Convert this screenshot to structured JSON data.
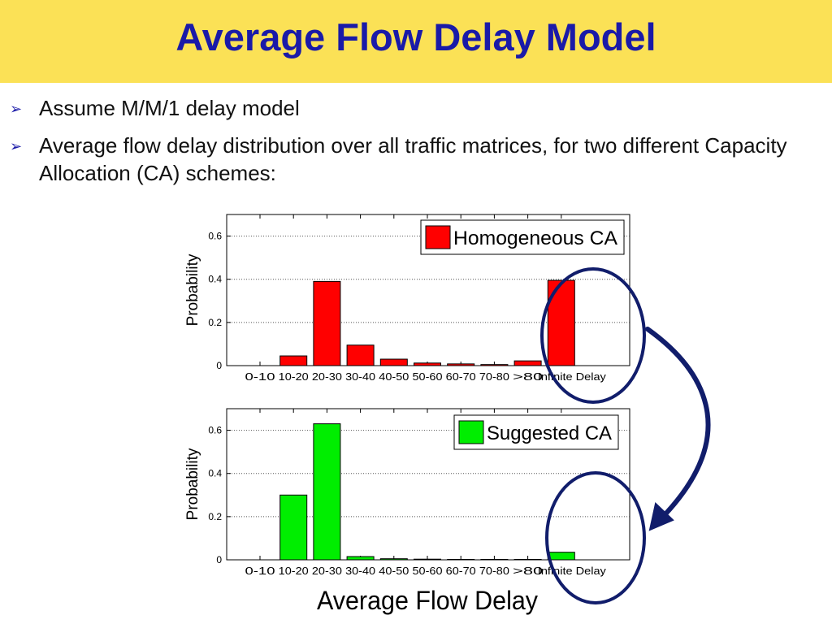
{
  "slide": {
    "title": "Average Flow Delay Model",
    "bullets": [
      "Assume M/M/1 delay model",
      "Average flow delay distribution over all traffic matrices, for two different Capacity Allocation (CA) schemes:"
    ],
    "bullet_mark": "➢",
    "colors": {
      "title_bar": "#fbe156",
      "title_text": "#1a1aa8",
      "annotation": "#111d6b"
    }
  },
  "chart_data": [
    {
      "type": "bar",
      "categories": [
        "0-10",
        "10-20",
        "20-30",
        "30-40",
        "40-50",
        "50-60",
        "60-70",
        "70-80",
        ">80",
        "Infinite Delay"
      ],
      "series": [
        {
          "name": "Homogeneous CA",
          "color": "#ff0000",
          "values": [
            0,
            0.045,
            0.39,
            0.095,
            0.03,
            0.012,
            0.008,
            0.005,
            0.022,
            0.395
          ]
        }
      ],
      "title": "",
      "xlabel": "",
      "ylabel": "Probability",
      "ylim": [
        0,
        0.7
      ],
      "yticks": [
        0,
        0.2,
        0.4,
        0.6
      ],
      "ytick_labels": [
        "0",
        "0.2",
        "0.4",
        "0.6"
      ],
      "grid": "horizontal-dotted",
      "legend": "top-right"
    },
    {
      "type": "bar",
      "categories": [
        "0-10",
        "10-20",
        "20-30",
        "30-40",
        "40-50",
        "50-60",
        "60-70",
        "70-80",
        ">80",
        "Infinite Delay"
      ],
      "series": [
        {
          "name": "Suggested CA",
          "color": "#00ee00",
          "values": [
            0,
            0.3,
            0.63,
            0.015,
            0.005,
            0.003,
            0.002,
            0.002,
            0.002,
            0.035
          ]
        }
      ],
      "title": "",
      "xlabel": "Average Flow Delay",
      "ylabel": "Probability",
      "ylim": [
        0,
        0.7
      ],
      "yticks": [
        0,
        0.2,
        0.4,
        0.6
      ],
      "ytick_labels": [
        "0",
        "0.2",
        "0.4",
        "0.6"
      ],
      "grid": "horizontal-dotted",
      "legend": "top-right"
    }
  ]
}
